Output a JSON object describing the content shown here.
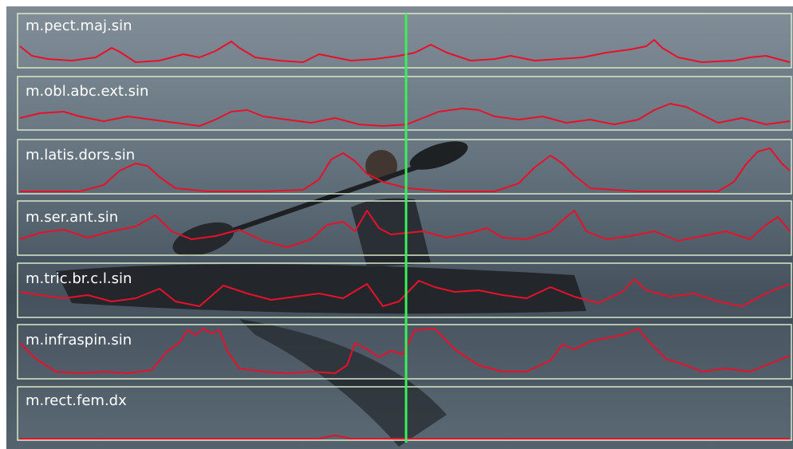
{
  "panels": [
    {
      "label": "m.pect.maj.sin"
    },
    {
      "label": "m.obl.abc.ext.sin"
    },
    {
      "label": "m.latis.dors.sin"
    },
    {
      "label": "m.ser.ant.sin"
    },
    {
      "label": "m.tric.br.c.l.sin"
    },
    {
      "label": "m.infraspin.sin"
    },
    {
      "label": "m.rect.fem.dx"
    }
  ]
}
